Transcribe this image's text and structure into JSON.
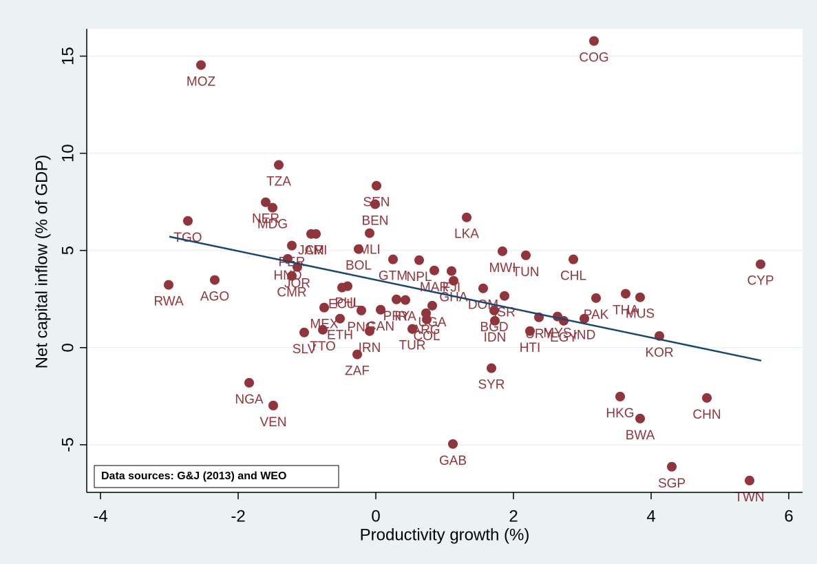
{
  "chart_data": {
    "type": "scatter",
    "x_label": "Productivity growth (%)",
    "y_label": "Net capital inflow (% of GDP)",
    "note": "Data sources: G&J (2013) and WEO",
    "xlim": [
      -4.2,
      6.2
    ],
    "xticks": [
      -4,
      -2,
      0,
      2,
      4,
      6
    ],
    "ylim": [
      -7.45,
      16.4
    ],
    "yticks": [
      -5,
      0,
      5,
      10,
      15
    ],
    "grid": true,
    "color": "#90353b",
    "line_color": "#1a476f",
    "fit_line": {
      "x": [
        -3,
        5.6
      ],
      "y": [
        5.71,
        -0.67
      ]
    },
    "points": [
      {
        "label": "MOZ",
        "x": -2.54,
        "y": 14.54
      },
      {
        "label": "COG",
        "x": 3.17,
        "y": 15.78
      },
      {
        "label": "TZA",
        "x": -1.41,
        "y": 9.4
      },
      {
        "label": "SEN",
        "x": 0.01,
        "y": 8.33
      },
      {
        "label": "BEN",
        "x": -0.01,
        "y": 7.38
      },
      {
        "label": "LKA",
        "x": 1.32,
        "y": 6.7
      },
      {
        "label": "TGO",
        "x": -2.73,
        "y": 6.52
      },
      {
        "label": "NER",
        "x": -1.6,
        "y": 7.48
      },
      {
        "label": "MDG",
        "x": -1.5,
        "y": 7.2
      },
      {
        "label": "JAM",
        "x": -0.94,
        "y": 5.85
      },
      {
        "label": "CRI",
        "x": -0.87,
        "y": 5.85
      },
      {
        "label": "MLI",
        "x": -0.09,
        "y": 5.89
      },
      {
        "label": "BOL",
        "x": -0.25,
        "y": 5.07
      },
      {
        "label": "PER",
        "x": -1.22,
        "y": 5.25
      },
      {
        "label": "HND",
        "x": -1.28,
        "y": 4.57
      },
      {
        "label": "JOR",
        "x": -1.14,
        "y": 4.15
      },
      {
        "label": "CMR",
        "x": -1.22,
        "y": 3.69
      },
      {
        "label": "GTM",
        "x": 0.25,
        "y": 4.54
      },
      {
        "label": "NPL",
        "x": 0.63,
        "y": 4.5
      },
      {
        "label": "MAR",
        "x": 0.85,
        "y": 3.97
      },
      {
        "label": "FJI",
        "x": 1.1,
        "y": 3.94
      },
      {
        "label": "GHA",
        "x": 1.13,
        "y": 3.44
      },
      {
        "label": "MWI",
        "x": 1.84,
        "y": 4.96
      },
      {
        "label": "TUN",
        "x": 2.18,
        "y": 4.75
      },
      {
        "label": "CHL",
        "x": 2.87,
        "y": 4.54
      },
      {
        "label": "CYP",
        "x": 5.59,
        "y": 4.29
      },
      {
        "label": "RWA",
        "x": -3.01,
        "y": 3.23
      },
      {
        "label": "AGO",
        "x": -2.34,
        "y": 3.48
      },
      {
        "label": "ECU",
        "x": -0.49,
        "y": 3.09
      },
      {
        "label": "PHL",
        "x": -0.41,
        "y": 3.16
      },
      {
        "label": "MEX",
        "x": -0.75,
        "y": 2.06
      },
      {
        "label": "ETH",
        "x": -0.52,
        "y": 1.49
      },
      {
        "label": "SLV",
        "x": -1.04,
        "y": 0.78
      },
      {
        "label": "TTO",
        "x": -0.77,
        "y": 0.92
      },
      {
        "label": "PNG",
        "x": -0.21,
        "y": 1.91
      },
      {
        "label": "CAN",
        "x": 0.07,
        "y": 1.95
      },
      {
        "label": "PRY",
        "x": 0.3,
        "y": 2.48
      },
      {
        "label": "IRA",
        "x": 0.43,
        "y": 2.45
      },
      {
        "label": "IRN",
        "x": -0.09,
        "y": 0.85
      },
      {
        "label": "ZAF",
        "x": -0.27,
        "y": -0.35
      },
      {
        "label": "UGA",
        "x": 0.82,
        "y": 2.16
      },
      {
        "label": "ARG",
        "x": 0.73,
        "y": 1.77
      },
      {
        "label": "COL",
        "x": 0.74,
        "y": 1.45
      },
      {
        "label": "TUR",
        "x": 0.53,
        "y": 0.96
      },
      {
        "label": "DOM",
        "x": 1.56,
        "y": 3.05
      },
      {
        "label": "ISR",
        "x": 1.87,
        "y": 2.66
      },
      {
        "label": "BGD",
        "x": 1.72,
        "y": 1.91
      },
      {
        "label": "IDN",
        "x": 1.73,
        "y": 1.38
      },
      {
        "label": "SYR",
        "x": 1.68,
        "y": -1.06
      },
      {
        "label": "URY",
        "x": 2.37,
        "y": 1.56
      },
      {
        "label": "HTI",
        "x": 2.24,
        "y": 0.85
      },
      {
        "label": "MYS",
        "x": 2.64,
        "y": 1.6
      },
      {
        "label": "EGY",
        "x": 2.73,
        "y": 1.38
      },
      {
        "label": "IND",
        "x": 3.03,
        "y": 1.49
      },
      {
        "label": "PAK",
        "x": 3.2,
        "y": 2.55
      },
      {
        "label": "THA",
        "x": 3.63,
        "y": 2.77
      },
      {
        "label": "MUS",
        "x": 3.84,
        "y": 2.59
      },
      {
        "label": "KOR",
        "x": 4.12,
        "y": 0.6
      },
      {
        "label": "NGA",
        "x": -1.84,
        "y": -1.81
      },
      {
        "label": "VEN",
        "x": -1.49,
        "y": -2.98
      },
      {
        "label": "GAB",
        "x": 1.12,
        "y": -4.96
      },
      {
        "label": "HKG",
        "x": 3.55,
        "y": -2.52
      },
      {
        "label": "BWA",
        "x": 3.84,
        "y": -3.65
      },
      {
        "label": "CHN",
        "x": 4.81,
        "y": -2.59
      },
      {
        "label": "SGP",
        "x": 4.3,
        "y": -6.13
      },
      {
        "label": "TWN",
        "x": 5.43,
        "y": -6.84
      }
    ]
  }
}
